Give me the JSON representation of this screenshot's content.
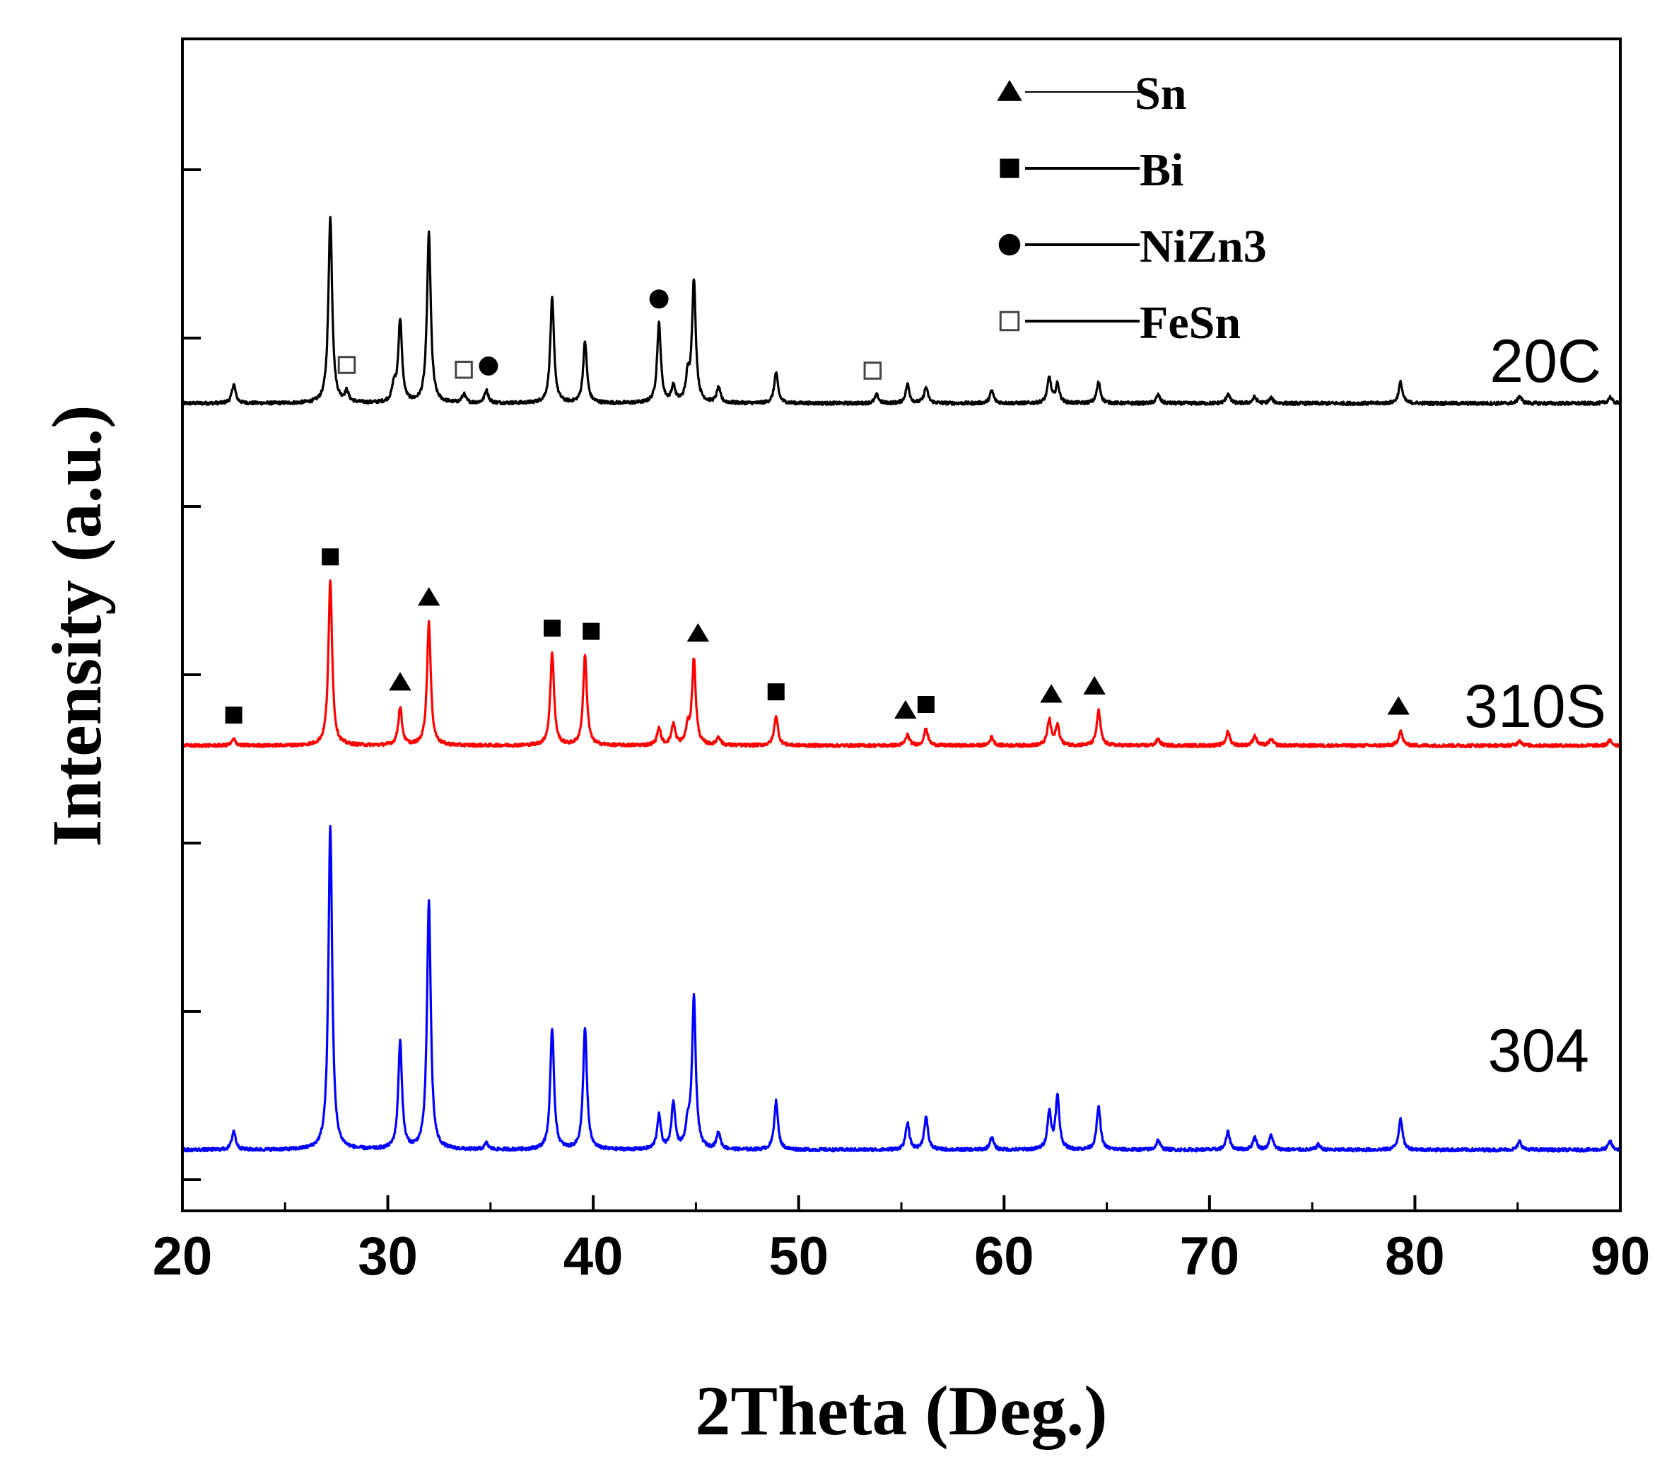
{
  "chart_data": {
    "type": "line",
    "title": "",
    "xlabel": "2Theta (Deg.)",
    "ylabel": "Intensity (a.u.)",
    "xlim": [
      20,
      90
    ],
    "ylim": [
      0,
      1
    ],
    "xticks": [
      "20",
      "30",
      "40",
      "50",
      "60",
      "70",
      "80",
      "90"
    ],
    "grid": false,
    "legend": {
      "position": "top-right",
      "entries": [
        {
          "marker": "triangle",
          "filled": true,
          "label": "Sn"
        },
        {
          "marker": "square",
          "filled": true,
          "label": "Bi"
        },
        {
          "marker": "circle",
          "filled": true,
          "label": "NiZn3"
        },
        {
          "marker": "square",
          "filled": false,
          "label": "FeSn"
        }
      ]
    },
    "series": [
      {
        "name": "20C",
        "color": "#000000",
        "baseline": 0.689,
        "scale": 0.9,
        "peaks": [
          {
            "x": 22.5,
            "h": 0.018
          },
          {
            "x": 27.2,
            "h": 0.176
          },
          {
            "x": 28.0,
            "h": 0.01
          },
          {
            "x": 30.3,
            "h": 0.015
          },
          {
            "x": 30.6,
            "h": 0.078
          },
          {
            "x": 32.0,
            "h": 0.161
          },
          {
            "x": 33.7,
            "h": 0.008
          },
          {
            "x": 34.8,
            "h": 0.012
          },
          {
            "x": 38.0,
            "h": 0.099
          },
          {
            "x": 39.6,
            "h": 0.058
          },
          {
            "x": 43.2,
            "h": 0.075
          },
          {
            "x": 43.9,
            "h": 0.015
          },
          {
            "x": 44.6,
            "h": 0.022
          },
          {
            "x": 44.9,
            "h": 0.115
          },
          {
            "x": 46.1,
            "h": 0.014
          },
          {
            "x": 48.9,
            "h": 0.029
          },
          {
            "x": 53.8,
            "h": 0.008
          },
          {
            "x": 55.3,
            "h": 0.018
          },
          {
            "x": 56.2,
            "h": 0.015
          },
          {
            "x": 59.4,
            "h": 0.012
          },
          {
            "x": 62.2,
            "h": 0.024
          },
          {
            "x": 62.6,
            "h": 0.018
          },
          {
            "x": 64.6,
            "h": 0.02
          },
          {
            "x": 67.5,
            "h": 0.008
          },
          {
            "x": 70.9,
            "h": 0.009
          },
          {
            "x": 72.2,
            "h": 0.006
          },
          {
            "x": 73.0,
            "h": 0.005
          },
          {
            "x": 79.3,
            "h": 0.02
          },
          {
            "x": 85.1,
            "h": 0.007
          },
          {
            "x": 89.5,
            "h": 0.006
          }
        ]
      },
      {
        "name": "310S",
        "color": "#ff0000",
        "baseline": 0.397,
        "scale": 0.9,
        "peaks": [
          {
            "x": 22.5,
            "h": 0.006
          },
          {
            "x": 27.2,
            "h": 0.156
          },
          {
            "x": 30.6,
            "h": 0.036
          },
          {
            "x": 32.0,
            "h": 0.117
          },
          {
            "x": 38.0,
            "h": 0.088
          },
          {
            "x": 39.6,
            "h": 0.085
          },
          {
            "x": 43.2,
            "h": 0.016
          },
          {
            "x": 43.9,
            "h": 0.02
          },
          {
            "x": 44.6,
            "h": 0.015
          },
          {
            "x": 44.9,
            "h": 0.081
          },
          {
            "x": 46.1,
            "h": 0.008
          },
          {
            "x": 48.9,
            "h": 0.028
          },
          {
            "x": 55.3,
            "h": 0.01
          },
          {
            "x": 56.2,
            "h": 0.016
          },
          {
            "x": 59.4,
            "h": 0.008
          },
          {
            "x": 62.2,
            "h": 0.024
          },
          {
            "x": 62.6,
            "h": 0.019
          },
          {
            "x": 64.6,
            "h": 0.033
          },
          {
            "x": 67.5,
            "h": 0.006
          },
          {
            "x": 70.9,
            "h": 0.013
          },
          {
            "x": 72.2,
            "h": 0.009
          },
          {
            "x": 73.0,
            "h": 0.006
          },
          {
            "x": 79.3,
            "h": 0.014
          },
          {
            "x": 85.1,
            "h": 0.005
          },
          {
            "x": 89.5,
            "h": 0.005
          }
        ]
      },
      {
        "name": "304",
        "color": "#0000ff",
        "baseline": 0.052,
        "scale": 0.9,
        "peaks": [
          {
            "x": 22.5,
            "h": 0.018
          },
          {
            "x": 27.2,
            "h": 0.307
          },
          {
            "x": 30.6,
            "h": 0.102
          },
          {
            "x": 32.0,
            "h": 0.236
          },
          {
            "x": 34.8,
            "h": 0.006
          },
          {
            "x": 38.0,
            "h": 0.115
          },
          {
            "x": 39.6,
            "h": 0.116
          },
          {
            "x": 43.2,
            "h": 0.032
          },
          {
            "x": 43.9,
            "h": 0.044
          },
          {
            "x": 44.6,
            "h": 0.02
          },
          {
            "x": 44.9,
            "h": 0.143
          },
          {
            "x": 46.1,
            "h": 0.016
          },
          {
            "x": 48.9,
            "h": 0.046
          },
          {
            "x": 55.3,
            "h": 0.025
          },
          {
            "x": 56.2,
            "h": 0.031
          },
          {
            "x": 59.4,
            "h": 0.012
          },
          {
            "x": 62.2,
            "h": 0.035
          },
          {
            "x": 62.6,
            "h": 0.05
          },
          {
            "x": 64.6,
            "h": 0.041
          },
          {
            "x": 67.5,
            "h": 0.009
          },
          {
            "x": 70.9,
            "h": 0.017
          },
          {
            "x": 72.2,
            "h": 0.012
          },
          {
            "x": 73.0,
            "h": 0.014
          },
          {
            "x": 75.3,
            "h": 0.005
          },
          {
            "x": 79.3,
            "h": 0.03
          },
          {
            "x": 85.1,
            "h": 0.008
          },
          {
            "x": 89.5,
            "h": 0.008
          }
        ]
      }
    ],
    "phase_markers": [
      {
        "series": "20C",
        "marker": "square-open",
        "x": [
          28.0,
          33.7,
          53.6
        ]
      },
      {
        "series": "20C",
        "marker": "circle",
        "x": [
          34.9,
          43.2
        ]
      },
      {
        "series": "310S",
        "marker": "square",
        "x": [
          22.5,
          27.2,
          38.0,
          39.9,
          48.9,
          56.2
        ]
      },
      {
        "series": "310S",
        "marker": "triangle",
        "x": [
          30.6,
          32.0,
          45.1,
          55.2,
          62.3,
          64.4,
          79.2
        ]
      }
    ]
  }
}
